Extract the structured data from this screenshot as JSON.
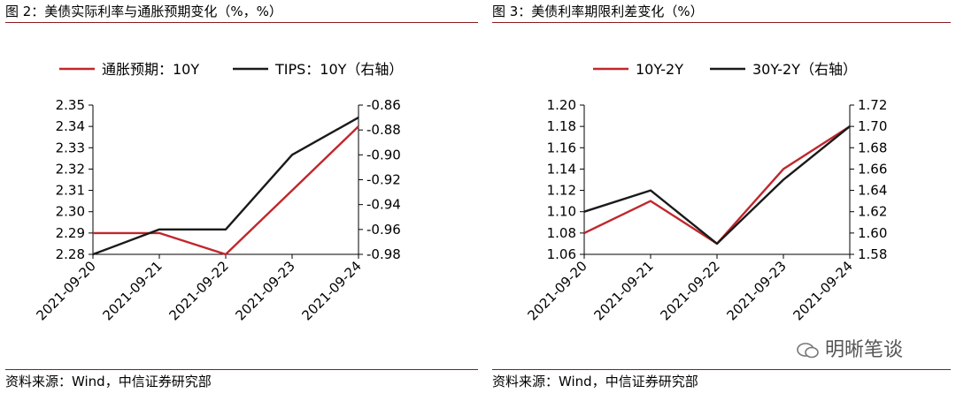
{
  "charts_text": {
    "left_title": "图 2：美债实际利率与通胀预期变化（%，%）",
    "right_title": "图 3：美债利率期限利差变化（%）",
    "left_source": "资料来源：Wind，中信证券研究部",
    "right_source": "资料来源：Wind，中信证券研究部",
    "watermark": "明晰笔谈"
  },
  "colors": {
    "red": "#c0272d",
    "black": "#1a1a1a",
    "rule": "#8a1a20"
  },
  "chart_data": [
    {
      "type": "line",
      "title": "图 2：美债实际利率与通胀预期变化（%，%）",
      "x": [
        "2021-09-20",
        "2021-09-21",
        "2021-09-22",
        "2021-09-23",
        "2021-09-24"
      ],
      "series": [
        {
          "name": "通胀预期：10Y",
          "axis": "left",
          "color": "#c0272d",
          "values": [
            2.29,
            2.29,
            2.28,
            2.31,
            2.34
          ]
        },
        {
          "name": "TIPS：10Y（右轴）",
          "axis": "right",
          "color": "#1a1a1a",
          "values": [
            -0.98,
            -0.96,
            -0.96,
            -0.9,
            -0.87
          ]
        }
      ],
      "ylim_left": [
        2.28,
        2.35
      ],
      "yticks_left": [
        "2.35",
        "2.34",
        "2.33",
        "2.32",
        "2.31",
        "2.30",
        "2.29",
        "2.28"
      ],
      "ylim_right": [
        -0.98,
        -0.86
      ],
      "yticks_right": [
        "-0.86",
        "-0.88",
        "-0.90",
        "-0.92",
        "-0.94",
        "-0.96",
        "-0.98"
      ],
      "legend": "top",
      "grid": false
    },
    {
      "type": "line",
      "title": "图 3：美债利率期限利差变化（%）",
      "x": [
        "2021-09-20",
        "2021-09-21",
        "2021-09-22",
        "2021-09-23",
        "2021-09-24"
      ],
      "series": [
        {
          "name": "10Y-2Y",
          "axis": "left",
          "color": "#c0272d",
          "values": [
            1.08,
            1.11,
            1.07,
            1.14,
            1.18
          ]
        },
        {
          "name": "30Y-2Y（右轴）",
          "axis": "right",
          "color": "#1a1a1a",
          "values": [
            1.62,
            1.64,
            1.59,
            1.65,
            1.7
          ]
        }
      ],
      "ylim_left": [
        1.06,
        1.2
      ],
      "yticks_left": [
        "1.20",
        "1.18",
        "1.16",
        "1.14",
        "1.12",
        "1.10",
        "1.08",
        "1.06"
      ],
      "ylim_right": [
        1.58,
        1.72
      ],
      "yticks_right": [
        "1.72",
        "1.70",
        "1.68",
        "1.66",
        "1.64",
        "1.62",
        "1.60",
        "1.58"
      ],
      "legend": "top",
      "grid": false
    }
  ]
}
